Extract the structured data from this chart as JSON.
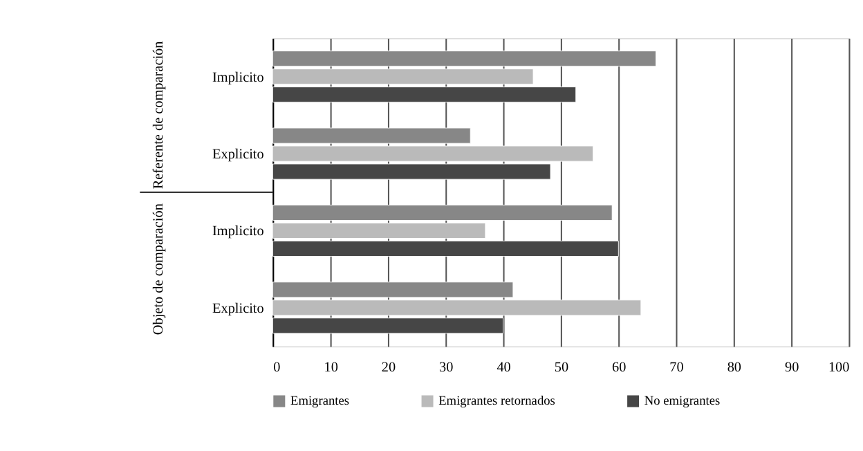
{
  "chart_data": {
    "type": "bar",
    "orientation": "horizontal",
    "categories": [
      "Implicito",
      "Explicito",
      "Implicito",
      "Explicito"
    ],
    "series": [
      {
        "name": "Emigrantes",
        "color": "#878787",
        "values": [
          66.5,
          34.3,
          58.9,
          41.7
        ]
      },
      {
        "name": "Emigrantes retornados",
        "color": "#bababa",
        "values": [
          45.2,
          55.6,
          36.9,
          63.9
        ]
      },
      {
        "name": "No emigrantes",
        "color": "#464646",
        "values": [
          52.6,
          48.2,
          60,
          40
        ]
      }
    ],
    "annotations": [
      "Referente de comparación",
      "Objeto de comparación"
    ],
    "xlim": [
      0,
      100
    ],
    "xticks": [
      0,
      10,
      20,
      30,
      40,
      50,
      60,
      70,
      80,
      90,
      100
    ],
    "grid": "x",
    "legend": "bottom"
  }
}
